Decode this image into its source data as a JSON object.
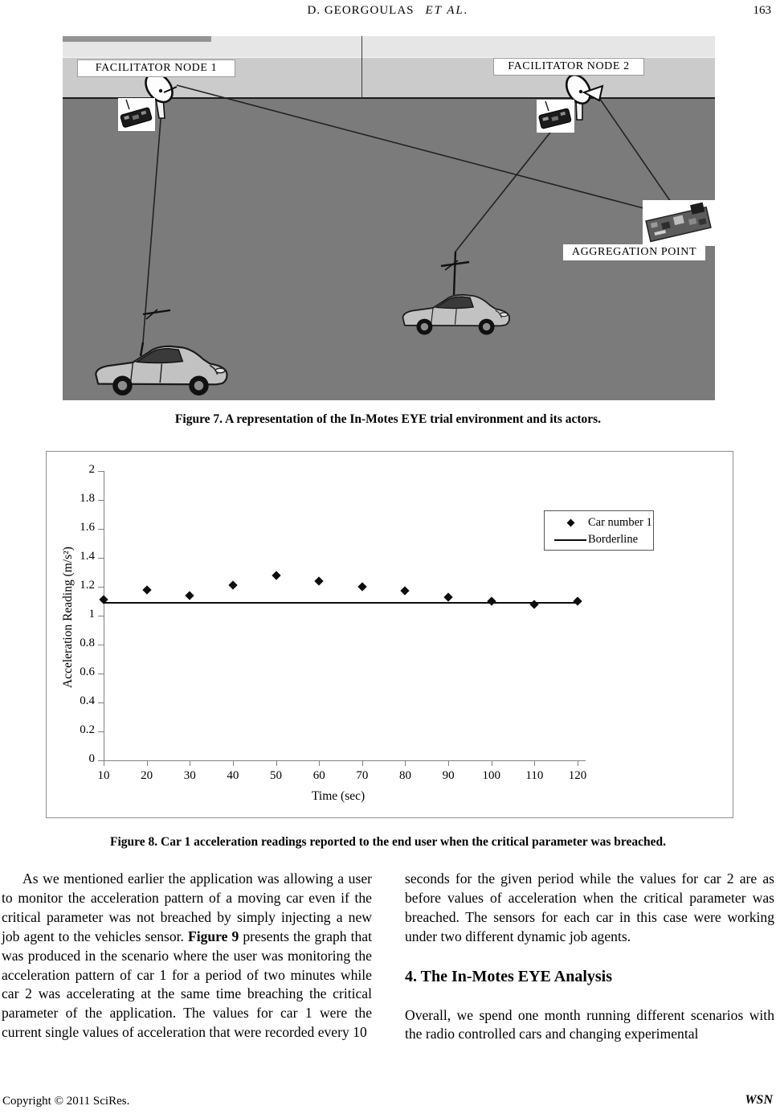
{
  "header": {
    "authors": "D. GEORGOULAS",
    "et_al": "ET AL.",
    "page_number": "163"
  },
  "figure7": {
    "labels": {
      "node1": "FACILITATOR NODE 1",
      "node2": "FACILITATOR NODE 2",
      "aggregation": "AGGREGATION POINT"
    },
    "caption": "Figure 7. A representation of the In-Motes EYE trial environment and its actors."
  },
  "figure8": {
    "caption": "Figure 8. Car 1 acceleration readings reported to the end user when the critical parameter was breached."
  },
  "chart_data": {
    "type": "scatter",
    "title": "",
    "xlabel": "Time (sec)",
    "ylabel": "Acceleration Reading (m/s²)",
    "xlim": [
      10,
      120
    ],
    "ylim": [
      0,
      2
    ],
    "grid": false,
    "legend_position": "upper right",
    "x": [
      10,
      20,
      30,
      40,
      50,
      60,
      70,
      80,
      90,
      100,
      110,
      120
    ],
    "xtick_labels": [
      "10",
      "20",
      "30",
      "40",
      "50",
      "60",
      "70",
      "80",
      "90",
      "100",
      "110",
      "120"
    ],
    "ytick_values": [
      0,
      0.2,
      0.4,
      0.6,
      0.8,
      1,
      1.2,
      1.4,
      1.6,
      1.8,
      2
    ],
    "ytick_labels": [
      "0",
      "0.2",
      "0.4",
      "0.6",
      "0.8",
      "1",
      "1.2",
      "1.4",
      "1.6",
      "1.8",
      "2"
    ],
    "series": [
      {
        "name": "Car number 1",
        "type": "scatter",
        "marker": "diamond",
        "color": "#0d0d0d",
        "values": [
          1.11,
          1.18,
          1.14,
          1.21,
          1.28,
          1.24,
          1.2,
          1.17,
          1.13,
          1.1,
          1.08,
          1.1
        ]
      },
      {
        "name": "Borderline",
        "type": "hline",
        "color": "#0d0d0d",
        "value": 1.09,
        "x_start": 10,
        "x_end": 120
      }
    ]
  },
  "body": {
    "left_par_before": "As we mentioned earlier the application was allowing a user to monitor the acceleration pattern of a moving car even if the critical parameter was not breached by simply injecting a new job agent to the vehicles sensor. ",
    "left_par_bold": "Figure 9",
    "left_par_after": " presents the graph that was produced in the scenario where the user was monitoring the acceleration pattern of car 1 for a period of two minutes while car 2 was accelerating at the same time breaching the critical parameter of the application. The values for car 1 were the current single values of acceleration that were recorded every 10",
    "right_par1": "seconds for the given period while the values for car 2 are as before values of acceleration when the critical parameter was breached. The sensors for each car in this case were working under two different dynamic job agents.",
    "section_heading": "4. The In-Motes EYE Analysis",
    "right_par2": "Overall, we spend one month running different scenarios with the radio controlled cars and changing experimental"
  },
  "footer": {
    "copyright": "Copyright © 2011 SciRes.",
    "journal": "WSN"
  }
}
